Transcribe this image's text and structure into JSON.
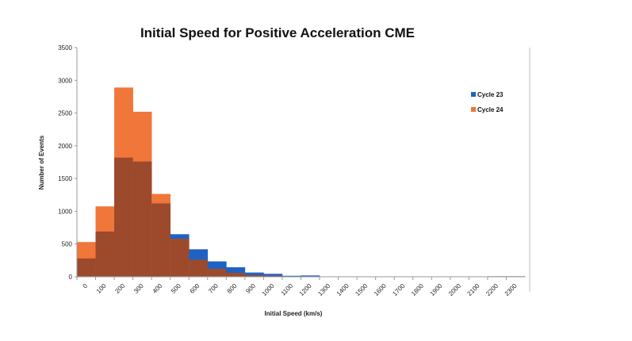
{
  "chart_data": {
    "type": "bar",
    "title": "Initial Speed for Positive Acceleration CME",
    "xlabel": "Initial Speed (km/s)",
    "ylabel": "Number of Events",
    "ylim": [
      0,
      3500
    ],
    "yticks": [
      0,
      500,
      1000,
      1500,
      2000,
      2500,
      3000,
      3500
    ],
    "categories": [
      "0",
      "100",
      "200",
      "300",
      "400",
      "500",
      "600",
      "700",
      "800",
      "900",
      "1000",
      "1100",
      "1200",
      "1300",
      "1400",
      "1500",
      "1600",
      "1700",
      "1800",
      "1900",
      "2000",
      "2100",
      "2200",
      "2300"
    ],
    "series": [
      {
        "name": "Cycle 23",
        "color": "#1f62c4",
        "values": [
          280,
          690,
          1820,
          1760,
          1120,
          650,
          420,
          235,
          145,
          65,
          45,
          15,
          20,
          5,
          5,
          5,
          5,
          5,
          5,
          5,
          5,
          5,
          8,
          8
        ]
      },
      {
        "name": "Cycle 24",
        "color": "#f0763a",
        "values": [
          530,
          1075,
          2890,
          2520,
          1265,
          580,
          260,
          120,
          60,
          25,
          15,
          5,
          5,
          2,
          2,
          2,
          2,
          2,
          2,
          2,
          2,
          2,
          2,
          2
        ]
      }
    ],
    "overlap_color": "#9c4a2b",
    "legend": "right",
    "grid": false
  }
}
